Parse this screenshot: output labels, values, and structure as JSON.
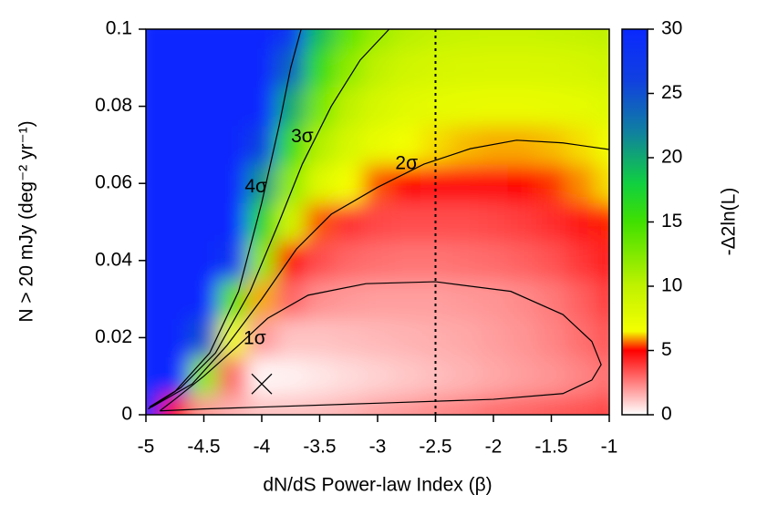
{
  "chart_data": {
    "type": "heatmap",
    "xlabel": "dN/dS Power-law Index (β)",
    "ylabel": "N > 20 mJy (deg⁻² yr⁻¹)",
    "colorbar_label": "-Δ2ln(L)",
    "xlim": [
      -5,
      -1
    ],
    "ylim": [
      0,
      0.1
    ],
    "xticks": [
      -5,
      -4.5,
      -4,
      -3.5,
      -3,
      -2.5,
      -2,
      -1.5,
      -1
    ],
    "yticks": [
      0,
      0.02,
      0.04,
      0.06,
      0.08,
      0.1
    ],
    "zlim": [
      0,
      30
    ],
    "zticks": [
      0,
      5,
      10,
      15,
      20,
      25,
      30
    ],
    "colormap": [
      {
        "value": 0,
        "color": "#ffffff"
      },
      {
        "value": 5,
        "color": "#ff0000"
      },
      {
        "value": 6.5,
        "color": "#f4ff00"
      },
      {
        "value": 10,
        "color": "#c0f200"
      },
      {
        "value": 15,
        "color": "#40e000"
      },
      {
        "value": 18,
        "color": "#10d040"
      },
      {
        "value": 22,
        "color": "#1080a0"
      },
      {
        "value": 26,
        "color": "#1040e0"
      },
      {
        "value": 30,
        "color": "#0a28ff"
      }
    ],
    "x": [
      -5,
      -4.75,
      -4.5,
      -4.25,
      -4,
      -3.75,
      -3.5,
      -3.25,
      -3,
      -2.75,
      -2.5,
      -2.25,
      -2,
      -1.75,
      -1.5,
      -1.25,
      -1
    ],
    "y": [
      0,
      0.01,
      0.02,
      0.03,
      0.04,
      0.05,
      0.06,
      0.07,
      0.08,
      0.09,
      0.1
    ],
    "z": [
      [
        30,
        5,
        2,
        1.5,
        1.2,
        1.2,
        1.3,
        1.5,
        1.8,
        2,
        2.3,
        2.5,
        2.8,
        3,
        3.2,
        3.4,
        3.6
      ],
      [
        30,
        30,
        12,
        3,
        0.2,
        0.3,
        0.5,
        0.7,
        0.9,
        1.1,
        1.3,
        1.5,
        1.7,
        1.9,
        2.1,
        2.4,
        2.8
      ],
      [
        30,
        30,
        25,
        7,
        2,
        1.2,
        1.2,
        1.3,
        1.4,
        1.5,
        1.6,
        1.7,
        1.9,
        2.1,
        2.4,
        2.8,
        3.3
      ],
      [
        30,
        30,
        30,
        14,
        6,
        3,
        2.2,
        2,
        1.9,
        1.9,
        1.9,
        2,
        2.1,
        2.3,
        2.6,
        3.1,
        3.8
      ],
      [
        30,
        30,
        30,
        28,
        12,
        5,
        3.5,
        3,
        2.8,
        2.7,
        2.7,
        2.8,
        2.9,
        3.1,
        3.4,
        3.9,
        4.5
      ],
      [
        30,
        30,
        30,
        30,
        17,
        9,
        5.5,
        4,
        3.6,
        3.5,
        3.5,
        3.5,
        3.6,
        3.8,
        4.1,
        4.6,
        5.2
      ],
      [
        30,
        30,
        30,
        30,
        21,
        12,
        8,
        6.5,
        5.5,
        5,
        4.8,
        4.8,
        4.8,
        5,
        5.3,
        5.8,
        6.3
      ],
      [
        30,
        30,
        30,
        30,
        26,
        16,
        10.5,
        8.5,
        7.2,
        6.6,
        6.3,
        6.1,
        6,
        6,
        6.1,
        6.3,
        6.8
      ],
      [
        30,
        30,
        30,
        30,
        30,
        20,
        13,
        10,
        8.5,
        7.8,
        7.5,
        7.3,
        7.2,
        7.2,
        7.3,
        7.5,
        7.9
      ],
      [
        30,
        30,
        30,
        30,
        30,
        24,
        16,
        12,
        10,
        9,
        8.6,
        8.4,
        8.3,
        8.3,
        8.4,
        8.6,
        9
      ],
      [
        30,
        30,
        30,
        30,
        30,
        28,
        19,
        14,
        11.5,
        10.3,
        9.8,
        9.5,
        9.4,
        9.4,
        9.5,
        9.7,
        10
      ]
    ],
    "contours": [
      {
        "label": "1σ",
        "label_x": -4.06,
        "label_y": 0.0196,
        "x": [
          -4.88,
          -4.5,
          -4,
          -3,
          -2,
          -1.4,
          -1.15,
          -1.07,
          -1.15,
          -1.4,
          -1.85,
          -2.5,
          -3.1,
          -3.6,
          -3.95,
          -4.2,
          -4.5,
          -4.75,
          -4.88
        ],
        "y": [
          0.001,
          0.0015,
          0.002,
          0.003,
          0.004,
          0.0055,
          0.009,
          0.013,
          0.019,
          0.026,
          0.032,
          0.0345,
          0.034,
          0.031,
          0.025,
          0.018,
          0.01,
          0.004,
          0.001
        ]
      },
      {
        "label": "2σ",
        "label_x": -2.75,
        "label_y": 0.065,
        "x": [
          -4.95,
          -4.6,
          -4.3,
          -4,
          -3.7,
          -3.4,
          -3,
          -2.6,
          -2.2,
          -1.8,
          -1.4,
          -1
        ],
        "y": [
          0.002,
          0.008,
          0.018,
          0.03,
          0.043,
          0.052,
          0.059,
          0.065,
          0.069,
          0.0712,
          0.0705,
          0.0688
        ]
      },
      {
        "label": "3σ",
        "label_x": -3.65,
        "label_y": 0.072,
        "x": [
          -4.97,
          -4.7,
          -4.4,
          -4.1,
          -3.85,
          -3.65,
          -3.4,
          -3.15,
          -2.9
        ],
        "y": [
          0.002,
          0.007,
          0.016,
          0.032,
          0.05,
          0.065,
          0.08,
          0.092,
          0.1
        ]
      },
      {
        "label": "4σ",
        "label_x": -4.05,
        "label_y": 0.059,
        "x": [
          -4.98,
          -4.75,
          -4.45,
          -4.2,
          -4,
          -3.85,
          -3.75,
          -3.66
        ],
        "y": [
          0.0015,
          0.006,
          0.016,
          0.032,
          0.055,
          0.075,
          0.09,
          0.1
        ]
      }
    ],
    "reference_line_x": -2.5,
    "best_fit": {
      "x": -4,
      "y": 0.008
    }
  }
}
